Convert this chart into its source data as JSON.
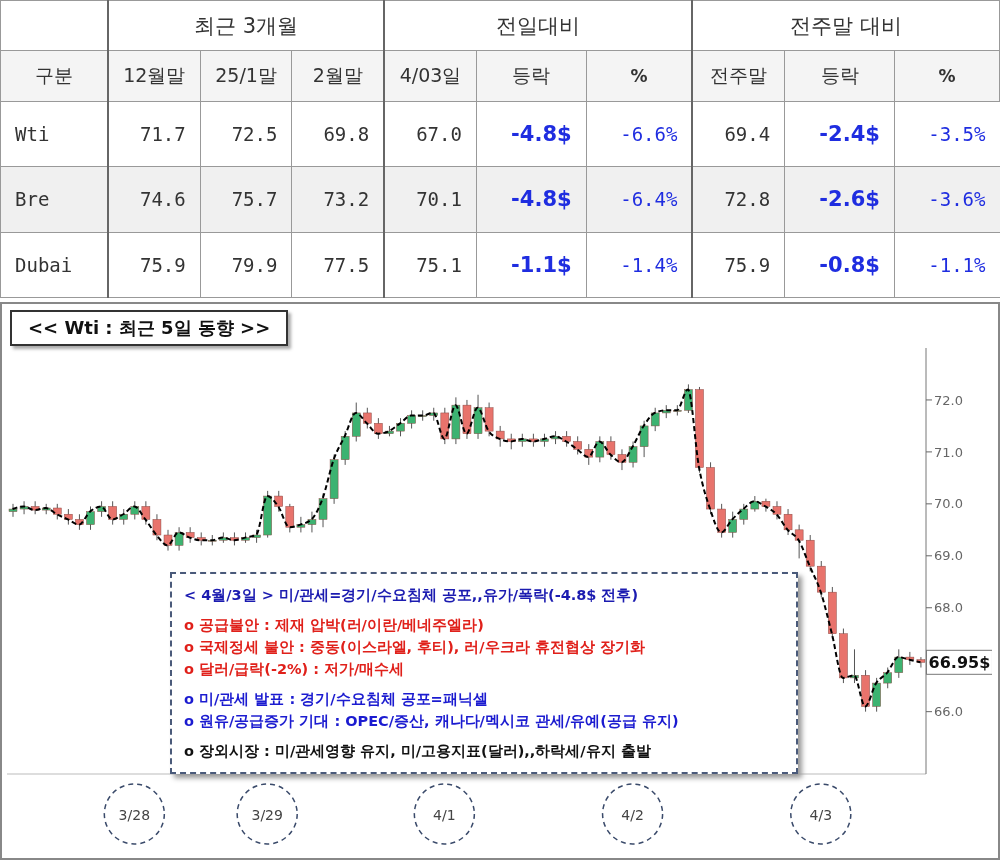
{
  "chart_data": [
    {
      "type": "other",
      "annotations": [
        "최근 3개월",
        "전일대비",
        "전주말 대비",
        "구분",
        "12월말",
        "25/1말",
        "2월말",
        "4/03일",
        "등락",
        "%",
        "전주말",
        "등락",
        "%",
        "Wti",
        "71.7",
        "72.5",
        "69.8",
        "67.0",
        "-4.8$",
        "-6.6%",
        "69.4",
        "-2.4$",
        "-3.5%",
        "Bre",
        "74.6",
        "75.7",
        "73.2",
        "70.1",
        "-4.8$",
        "-6.4%",
        "72.8",
        "-2.6$",
        "-3.6%",
        "Dubai",
        "75.9",
        "79.9",
        "77.5",
        "75.1",
        "-1.1$",
        "-1.4%",
        "75.9",
        "-0.8$",
        "-1.1%"
      ]
    },
    {
      "type": "candlestick",
      "title": "<< Wti : 최근 5일 동향 >>",
      "categories": [
        null,
        null,
        null,
        null,
        null,
        null,
        null,
        null,
        null,
        null,
        null,
        "3/28",
        null,
        null,
        null,
        null,
        null,
        null,
        null,
        null,
        null,
        null,
        null,
        "3/29",
        null,
        null,
        null,
        null,
        null,
        null,
        null,
        null,
        null,
        null,
        null,
        null,
        null,
        null,
        null,
        "4/1",
        null,
        null,
        null,
        null,
        null,
        null,
        null,
        null,
        null,
        null,
        null,
        null,
        null,
        null,
        null,
        null,
        "4/2",
        null,
        null,
        null,
        null,
        null,
        null,
        null,
        null,
        null,
        null,
        null,
        null,
        null,
        null,
        null,
        null,
        "4/3",
        null,
        null,
        null,
        null,
        null,
        null,
        null,
        null,
        null
      ],
      "ohlc": [
        [
          69.85,
          70.0,
          69.75,
          69.9
        ],
        [
          69.9,
          70.05,
          69.8,
          69.95
        ],
        [
          69.95,
          70.05,
          69.8,
          69.88
        ],
        [
          69.88,
          70.0,
          69.8,
          69.92
        ],
        [
          69.92,
          70.0,
          69.7,
          69.8
        ],
        [
          69.8,
          69.9,
          69.6,
          69.7
        ],
        [
          69.7,
          69.8,
          69.5,
          69.6
        ],
        [
          69.6,
          69.95,
          69.5,
          69.85
        ],
        [
          69.85,
          70.05,
          69.75,
          69.95
        ],
        [
          69.95,
          70.05,
          69.6,
          69.7
        ],
        [
          69.7,
          69.9,
          69.6,
          69.8
        ],
        [
          69.8,
          70.05,
          69.7,
          69.95
        ],
        [
          69.95,
          70.05,
          69.6,
          69.7
        ],
        [
          69.7,
          69.8,
          69.3,
          69.4
        ],
        [
          69.4,
          69.5,
          69.1,
          69.2
        ],
        [
          69.2,
          69.55,
          69.1,
          69.45
        ],
        [
          69.45,
          69.55,
          69.25,
          69.35
        ],
        [
          69.35,
          69.45,
          69.2,
          69.3
        ],
        [
          69.28,
          69.4,
          69.2,
          69.3
        ],
        [
          69.3,
          69.45,
          69.25,
          69.35
        ],
        [
          69.35,
          69.45,
          69.2,
          69.3
        ],
        [
          69.3,
          69.45,
          69.25,
          69.35
        ],
        [
          69.35,
          69.5,
          69.25,
          69.4
        ],
        [
          69.4,
          70.25,
          69.35,
          70.15
        ],
        [
          70.15,
          70.25,
          69.85,
          69.95
        ],
        [
          69.95,
          70.0,
          69.45,
          69.55
        ],
        [
          69.55,
          69.75,
          69.45,
          69.6
        ],
        [
          69.6,
          69.85,
          69.45,
          69.7
        ],
        [
          69.7,
          70.2,
          69.55,
          70.1
        ],
        [
          70.1,
          70.95,
          70.0,
          70.85
        ],
        [
          70.85,
          71.4,
          70.75,
          71.3
        ],
        [
          71.3,
          71.95,
          71.2,
          71.75
        ],
        [
          71.75,
          71.85,
          71.45,
          71.55
        ],
        [
          71.55,
          71.65,
          71.25,
          71.35
        ],
        [
          71.35,
          71.5,
          71.3,
          71.4
        ],
        [
          71.4,
          71.65,
          71.3,
          71.55
        ],
        [
          71.55,
          71.8,
          71.45,
          71.7
        ],
        [
          71.68,
          71.8,
          71.6,
          71.7
        ],
        [
          71.7,
          71.85,
          71.6,
          71.75
        ],
        [
          71.75,
          71.85,
          71.15,
          71.25
        ],
        [
          71.25,
          72.05,
          71.15,
          71.9
        ],
        [
          71.9,
          72.0,
          71.25,
          71.35
        ],
        [
          71.35,
          72.1,
          71.25,
          71.85
        ],
        [
          71.85,
          71.95,
          71.3,
          71.4
        ],
        [
          71.4,
          71.5,
          71.1,
          71.25
        ],
        [
          71.25,
          71.35,
          71.05,
          71.2
        ],
        [
          71.2,
          71.35,
          71.1,
          71.25
        ],
        [
          71.25,
          71.35,
          71.1,
          71.2
        ],
        [
          71.2,
          71.35,
          71.1,
          71.25
        ],
        [
          71.25,
          71.4,
          71.15,
          71.3
        ],
        [
          71.3,
          71.4,
          71.1,
          71.2
        ],
        [
          71.2,
          71.3,
          70.95,
          71.05
        ],
        [
          71.05,
          71.15,
          70.75,
          70.9
        ],
        [
          70.9,
          71.3,
          70.8,
          71.2
        ],
        [
          71.2,
          71.3,
          70.85,
          70.95
        ],
        [
          70.95,
          71.05,
          70.65,
          70.8
        ],
        [
          70.8,
          71.2,
          70.7,
          71.1
        ],
        [
          71.1,
          71.6,
          70.9,
          71.5
        ],
        [
          71.5,
          71.85,
          71.4,
          71.75
        ],
        [
          71.75,
          71.9,
          71.65,
          71.8
        ],
        [
          71.78,
          71.9,
          71.7,
          71.8
        ],
        [
          71.8,
          72.3,
          71.75,
          72.2
        ],
        [
          72.2,
          72.25,
          70.6,
          70.7
        ],
        [
          70.7,
          70.8,
          69.8,
          69.9
        ],
        [
          69.9,
          70.0,
          69.35,
          69.45
        ],
        [
          69.45,
          69.85,
          69.35,
          69.7
        ],
        [
          69.7,
          70.0,
          69.6,
          69.9
        ],
        [
          69.9,
          70.15,
          69.85,
          70.05
        ],
        [
          70.05,
          70.1,
          69.85,
          69.95
        ],
        [
          69.95,
          70.05,
          69.7,
          69.8
        ],
        [
          69.8,
          69.9,
          69.4,
          69.5
        ],
        [
          69.5,
          69.6,
          68.95,
          69.3
        ],
        [
          69.3,
          69.4,
          68.7,
          68.8
        ],
        [
          68.8,
          68.9,
          68.2,
          68.3
        ],
        [
          68.3,
          68.4,
          67.4,
          67.5
        ],
        [
          67.5,
          67.6,
          66.55,
          66.65
        ],
        [
          66.65,
          67.2,
          66.55,
          66.7
        ],
        [
          66.7,
          66.8,
          66.0,
          66.1
        ],
        [
          66.1,
          66.65,
          66.0,
          66.55
        ],
        [
          66.55,
          66.85,
          66.45,
          66.75
        ],
        [
          66.75,
          67.2,
          66.65,
          67.05
        ],
        [
          67.05,
          67.15,
          66.9,
          67.0
        ],
        [
          67.0,
          67.05,
          66.85,
          66.95
        ]
      ],
      "series": [
        {
          "type": "line",
          "color": "#000000",
          "line_style": "dashed",
          "values": [
            69.9,
            69.95,
            69.88,
            69.92,
            69.8,
            69.7,
            69.6,
            69.85,
            69.95,
            69.7,
            69.8,
            69.95,
            69.7,
            69.4,
            69.2,
            69.45,
            69.35,
            69.3,
            69.3,
            69.35,
            69.3,
            69.35,
            69.4,
            70.15,
            69.95,
            69.55,
            69.6,
            69.7,
            70.1,
            70.85,
            71.3,
            71.75,
            71.55,
            71.35,
            71.4,
            71.55,
            71.7,
            71.7,
            71.75,
            71.25,
            71.9,
            71.35,
            71.85,
            71.4,
            71.25,
            71.2,
            71.25,
            71.2,
            71.25,
            71.3,
            71.2,
            71.05,
            70.9,
            71.2,
            70.95,
            70.8,
            71.1,
            71.5,
            71.75,
            71.8,
            71.8,
            72.2,
            70.7,
            69.9,
            69.45,
            69.7,
            69.9,
            70.05,
            69.95,
            69.8,
            69.5,
            69.3,
            68.8,
            68.3,
            67.5,
            66.65,
            66.7,
            66.1,
            66.55,
            66.75,
            67.05,
            67.0,
            66.95
          ]
        }
      ],
      "colors": [
        "#3cb371",
        "#3cb371",
        "#e8736c",
        "#3cb371",
        "#e8736c",
        "#e8736c",
        "#e8736c",
        "#3cb371",
        "#3cb371",
        "#e8736c",
        "#3cb371",
        "#3cb371",
        "#e8736c",
        "#e8736c",
        "#e8736c",
        "#3cb371",
        "#e8736c",
        "#e8736c",
        "#3cb371",
        "#3cb371",
        "#e8736c",
        "#3cb371",
        "#3cb371",
        "#3cb371",
        "#e8736c",
        "#e8736c",
        "#3cb371",
        "#3cb371",
        "#3cb371",
        "#3cb371",
        "#3cb371",
        "#3cb371",
        "#e8736c",
        "#e8736c",
        "#3cb371",
        "#3cb371",
        "#3cb371",
        "#3cb371",
        "#3cb371",
        "#e8736c",
        "#3cb371",
        "#e8736c",
        "#3cb371",
        "#e8736c",
        "#e8736c",
        "#e8736c",
        "#3cb371",
        "#e8736c",
        "#3cb371",
        "#3cb371",
        "#e8736c",
        "#e8736c",
        "#e8736c",
        "#3cb371",
        "#e8736c",
        "#e8736c",
        "#3cb371",
        "#3cb371",
        "#3cb371",
        "#3cb371",
        "#3cb371",
        "#3cb371",
        "#e8736c",
        "#e8736c",
        "#e8736c",
        "#3cb371",
        "#3cb371",
        "#3cb371",
        "#e8736c",
        "#e8736c",
        "#e8736c",
        "#e8736c",
        "#e8736c",
        "#e8736c",
        "#e8736c",
        "#e8736c",
        "#3cb371",
        "#e8736c",
        "#3cb371",
        "#3cb371",
        "#3cb371",
        "#e8736c",
        "#e8736c"
      ],
      "ylim": [
        64.8,
        73.0
      ],
      "yticks": [
        {
          "value": 66,
          "label": "66.0"
        },
        {
          "value": 68,
          "label": "68.0"
        },
        {
          "value": 69,
          "label": "69.0"
        },
        {
          "value": 70,
          "label": "70.0"
        },
        {
          "value": 71,
          "label": "71.0"
        },
        {
          "value": 72,
          "label": "72.0"
        }
      ],
      "grid": false,
      "legend": false,
      "annotations": [
        "< 4월/3일 > 미/관세=경기/수요침체 공포,,유가/폭락(-4.8$ 전후)",
        "o 공급불안 : 제재 압박(러/이란/베네주엘라)",
        "o 국제정세 불안 : 중동(이스라엘, 후티), 러/우크라 휴전협상 장기화",
        "o 달러/급락(-2%) : 저가/매수세",
        "o 미/관세 발표 : 경기/수요침체 공포=패닉셀",
        "o 원유/공급증가 기대 : OPEC/증산, 캐나다/멕시코 관세/유예(공급 유지)",
        "o 장외시장 : 미/관세영향 유지, 미/고용지표(달러),,하락세/유지 출발",
        "66.95$"
      ]
    }
  ]
}
